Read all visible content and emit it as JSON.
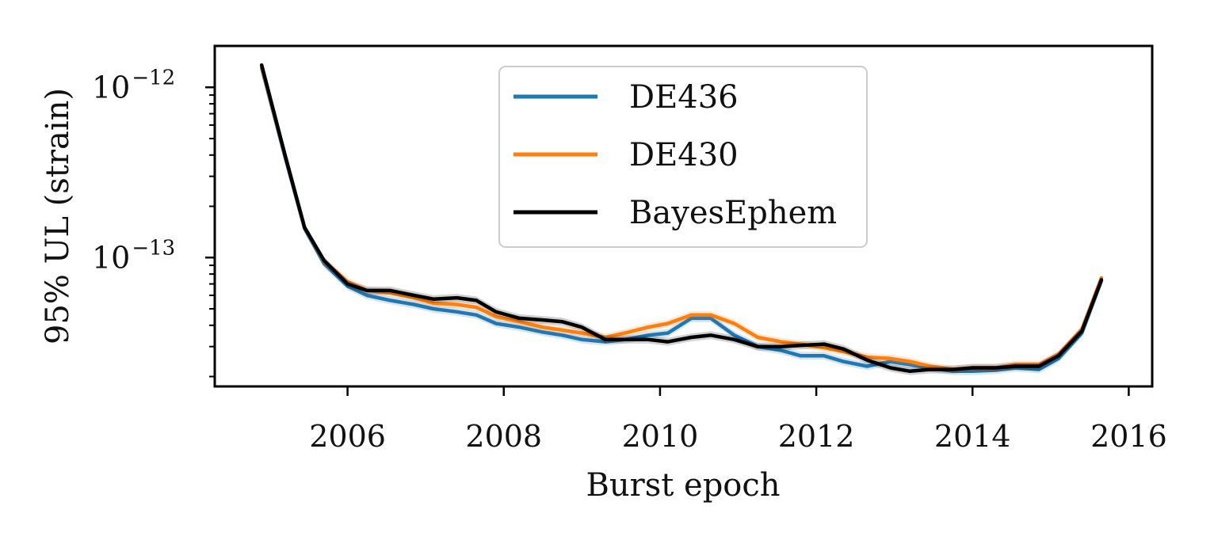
{
  "chart_data": {
    "type": "line",
    "title": "",
    "xlabel": "Burst epoch",
    "ylabel": "95% UL (strain)",
    "xlim": [
      2004.3,
      2016.3
    ],
    "ylim": [
      1.75e-14,
      1.75e-12
    ],
    "yscale": "log",
    "xticks": [
      2006,
      2008,
      2010,
      2012,
      2014,
      2016
    ],
    "xtick_labels": [
      "2006",
      "2008",
      "2010",
      "2012",
      "2014",
      "2016"
    ],
    "yticks": [
      {
        "value": 1e-12,
        "base": "10",
        "exponent": "−12"
      },
      {
        "value": 1e-13,
        "base": "10",
        "exponent": "−13"
      }
    ],
    "grid": false,
    "legend_position": "top-center",
    "x": [
      2004.9,
      2005.2,
      2005.45,
      2005.7,
      2006.0,
      2006.25,
      2006.55,
      2006.85,
      2007.1,
      2007.4,
      2007.65,
      2007.9,
      2008.2,
      2008.5,
      2008.75,
      2009.0,
      2009.3,
      2009.55,
      2009.85,
      2010.1,
      2010.4,
      2010.65,
      2010.95,
      2011.25,
      2011.55,
      2011.8,
      2012.1,
      2012.35,
      2012.65,
      2012.95,
      2013.2,
      2013.45,
      2013.75,
      2014.0,
      2014.3,
      2014.55,
      2014.85,
      2015.1,
      2015.4,
      2015.65
    ],
    "series": [
      {
        "name": "DE436",
        "color": "#1f77b4",
        "values": [
          1.3e-12,
          3.9e-13,
          1.48e-13,
          9.2e-14,
          6.8e-14,
          6e-14,
          5.6e-14,
          5.3e-14,
          5e-14,
          4.8e-14,
          4.6e-14,
          4.1e-14,
          3.9e-14,
          3.65e-14,
          3.5e-14,
          3.3e-14,
          3.2e-14,
          3.3e-14,
          3.5e-14,
          3.6e-14,
          4.4e-14,
          4.4e-14,
          3.5e-14,
          3e-14,
          2.85e-14,
          2.65e-14,
          2.65e-14,
          2.45e-14,
          2.3e-14,
          2.45e-14,
          2.35e-14,
          2.25e-14,
          2.15e-14,
          2.15e-14,
          2.18e-14,
          2.25e-14,
          2.2e-14,
          2.55e-14,
          3.6e-14,
          7.3e-14
        ]
      },
      {
        "name": "DE430",
        "color": "#ff7f0e",
        "values": [
          1.32e-12,
          4e-13,
          1.5e-13,
          9.5e-14,
          7.2e-14,
          6.4e-14,
          6.2e-14,
          5.8e-14,
          5.4e-14,
          5.3e-14,
          5.1e-14,
          4.5e-14,
          4.2e-14,
          3.9e-14,
          3.75e-14,
          3.6e-14,
          3.4e-14,
          3.6e-14,
          3.9e-14,
          4.1e-14,
          4.6e-14,
          4.6e-14,
          4.1e-14,
          3.4e-14,
          3.2e-14,
          3.1e-14,
          2.95e-14,
          2.8e-14,
          2.6e-14,
          2.55e-14,
          2.45e-14,
          2.3e-14,
          2.2e-14,
          2.25e-14,
          2.25e-14,
          2.35e-14,
          2.35e-14,
          2.7e-14,
          3.8e-14,
          7.6e-14
        ]
      },
      {
        "name": "BayesEphem",
        "color": "#000000",
        "values": [
          1.35e-12,
          4e-13,
          1.5e-13,
          9.6e-14,
          7e-14,
          6.4e-14,
          6.4e-14,
          6e-14,
          5.7e-14,
          5.8e-14,
          5.6e-14,
          4.8e-14,
          4.4e-14,
          4.3e-14,
          4.2e-14,
          3.9e-14,
          3.3e-14,
          3.3e-14,
          3.3e-14,
          3.2e-14,
          3.4e-14,
          3.5e-14,
          3.3e-14,
          3e-14,
          3e-14,
          3.05e-14,
          3.1e-14,
          2.9e-14,
          2.5e-14,
          2.25e-14,
          2.15e-14,
          2.2e-14,
          2.2e-14,
          2.25e-14,
          2.25e-14,
          2.3e-14,
          2.3e-14,
          2.65e-14,
          3.7e-14,
          7.4e-14
        ]
      }
    ]
  }
}
